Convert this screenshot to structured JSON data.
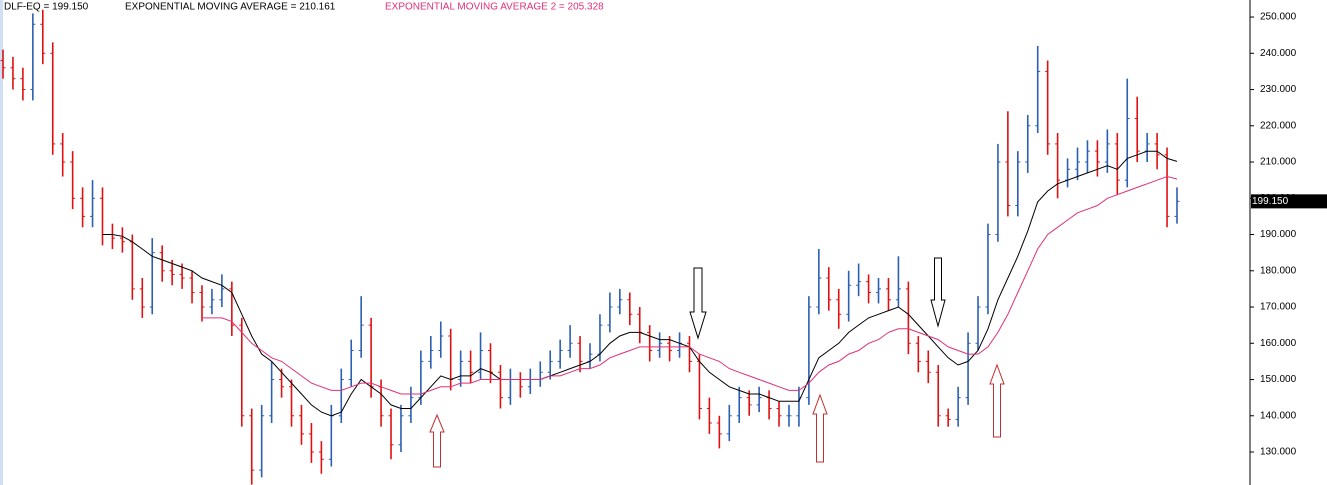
{
  "chart_data": {
    "type": "ohlc",
    "title": "DLF-EQ = 199.150",
    "up_color": "#2b5fb3",
    "down_color": "#e01010",
    "last_price_label": "199.150",
    "ylim": [
      120.9,
      254.7
    ],
    "yticks": [
      {
        "value": 130,
        "label": "130.000"
      },
      {
        "value": 140,
        "label": "140.000"
      },
      {
        "value": 150,
        "label": "150.000"
      },
      {
        "value": 160,
        "label": "160.000"
      },
      {
        "value": 170,
        "label": "170.000"
      },
      {
        "value": 180,
        "label": "180.000"
      },
      {
        "value": 190,
        "label": "190.000"
      },
      {
        "value": 200,
        "label": "200.000"
      },
      {
        "value": 210,
        "label": "210.000"
      },
      {
        "value": 220,
        "label": "220.000"
      },
      {
        "value": 230,
        "label": "230.000"
      },
      {
        "value": 240,
        "label": "240.000"
      },
      {
        "value": 250,
        "label": "250.000"
      }
    ],
    "ohlc": [
      [
        238,
        241,
        233,
        236
      ],
      [
        236,
        239,
        230,
        233
      ],
      [
        233,
        236,
        227,
        230
      ],
      [
        230,
        251,
        227,
        248
      ],
      [
        248,
        252,
        237,
        240
      ],
      [
        240,
        243,
        212,
        215
      ],
      [
        215,
        218,
        206,
        210
      ],
      [
        210,
        213,
        197,
        200
      ],
      [
        200,
        203,
        192,
        195
      ],
      [
        195,
        205,
        192,
        200
      ],
      [
        200,
        203,
        187,
        190
      ],
      [
        190,
        193,
        186,
        189
      ],
      [
        189,
        192,
        185,
        188
      ],
      [
        188,
        190,
        172,
        175
      ],
      [
        175,
        178,
        167,
        170
      ],
      [
        170,
        189,
        168,
        185
      ],
      [
        185,
        187,
        177,
        180
      ],
      [
        180,
        183,
        176,
        179
      ],
      [
        179,
        182,
        175,
        178
      ],
      [
        178,
        180,
        171,
        174
      ],
      [
        174,
        176,
        166,
        170
      ],
      [
        170,
        175,
        168,
        172
      ],
      [
        172,
        179,
        170,
        175
      ],
      [
        175,
        177,
        162,
        165
      ],
      [
        165,
        167,
        137,
        140
      ],
      [
        140,
        142,
        121,
        125
      ],
      [
        125,
        143,
        123,
        140
      ],
      [
        140,
        155,
        138,
        150
      ],
      [
        150,
        153,
        145,
        148
      ],
      [
        148,
        150,
        137,
        140
      ],
      [
        140,
        143,
        132,
        135
      ],
      [
        135,
        138,
        127,
        130
      ],
      [
        130,
        133,
        124,
        128
      ],
      [
        128,
        143,
        126,
        140
      ],
      [
        140,
        153,
        138,
        150
      ],
      [
        150,
        161,
        148,
        158
      ],
      [
        158,
        173,
        156,
        165
      ],
      [
        165,
        167,
        145,
        148
      ],
      [
        148,
        150,
        137,
        140
      ],
      [
        140,
        142,
        128,
        132
      ],
      [
        132,
        143,
        130,
        140
      ],
      [
        140,
        148,
        138,
        145
      ],
      [
        145,
        158,
        143,
        155
      ],
      [
        155,
        162,
        153,
        158
      ],
      [
        158,
        166,
        156,
        162
      ],
      [
        162,
        164,
        147,
        150
      ],
      [
        150,
        158,
        148,
        155
      ],
      [
        155,
        158,
        149,
        152
      ],
      [
        152,
        163,
        150,
        158
      ],
      [
        158,
        160,
        149,
        152
      ],
      [
        152,
        154,
        142,
        145
      ],
      [
        145,
        153,
        143,
        150
      ],
      [
        150,
        152,
        145,
        148
      ],
      [
        148,
        153,
        146,
        150
      ],
      [
        150,
        155,
        148,
        152
      ],
      [
        152,
        158,
        150,
        155
      ],
      [
        155,
        161,
        153,
        158
      ],
      [
        158,
        165,
        156,
        160
      ],
      [
        160,
        162,
        152,
        155
      ],
      [
        155,
        160,
        153,
        157
      ],
      [
        157,
        168,
        155,
        165
      ],
      [
        165,
        174,
        163,
        170
      ],
      [
        170,
        175,
        168,
        172
      ],
      [
        172,
        174,
        165,
        168
      ],
      [
        168,
        170,
        160,
        163
      ],
      [
        163,
        165,
        155,
        158
      ],
      [
        158,
        163,
        156,
        160
      ],
      [
        160,
        162,
        155,
        158
      ],
      [
        158,
        163,
        156,
        160
      ],
      [
        160,
        162,
        152,
        155
      ],
      [
        155,
        157,
        139,
        142
      ],
      [
        142,
        145,
        135,
        138
      ],
      [
        138,
        140,
        131,
        135
      ],
      [
        135,
        143,
        133,
        140
      ],
      [
        140,
        148,
        138,
        145
      ],
      [
        145,
        147,
        140,
        143
      ],
      [
        143,
        148,
        141,
        145
      ],
      [
        145,
        147,
        139,
        142
      ],
      [
        142,
        144,
        137,
        140
      ],
      [
        140,
        143,
        137,
        140
      ],
      [
        140,
        148,
        137,
        145
      ],
      [
        145,
        173,
        143,
        170
      ],
      [
        170,
        186,
        168,
        178
      ],
      [
        178,
        181,
        169,
        172
      ],
      [
        172,
        175,
        164,
        168
      ],
      [
        168,
        180,
        166,
        176
      ],
      [
        176,
        182,
        173,
        177
      ],
      [
        177,
        179,
        171,
        174
      ],
      [
        174,
        178,
        171,
        175
      ],
      [
        175,
        178,
        169,
        172
      ],
      [
        172,
        184,
        170,
        175
      ],
      [
        175,
        177,
        157,
        160
      ],
      [
        160,
        162,
        152,
        155
      ],
      [
        155,
        158,
        149,
        152
      ],
      [
        152,
        154,
        137,
        140
      ],
      [
        140,
        142,
        137,
        139
      ],
      [
        139,
        148,
        137,
        145
      ],
      [
        145,
        163,
        143,
        160
      ],
      [
        160,
        173,
        158,
        170
      ],
      [
        170,
        193,
        168,
        190
      ],
      [
        190,
        215,
        188,
        210
      ],
      [
        210,
        224,
        195,
        198
      ],
      [
        198,
        213,
        195,
        210
      ],
      [
        210,
        223,
        207,
        220
      ],
      [
        220,
        242,
        218,
        235
      ],
      [
        235,
        238,
        212,
        215
      ],
      [
        215,
        218,
        200,
        205
      ],
      [
        205,
        211,
        203,
        208
      ],
      [
        208,
        214,
        205,
        210
      ],
      [
        210,
        216,
        207,
        213
      ],
      [
        213,
        216,
        206,
        210
      ],
      [
        210,
        219,
        207,
        215
      ],
      [
        215,
        218,
        201,
        205
      ],
      [
        205,
        233,
        203,
        222
      ],
      [
        222,
        228,
        210,
        213
      ],
      [
        213,
        218,
        210,
        215
      ],
      [
        215,
        218,
        208,
        212
      ],
      [
        212,
        214,
        192,
        195
      ],
      [
        195,
        203,
        193,
        199.15
      ]
    ],
    "series": [
      {
        "label": "EXPONENTIAL MOVING AVERAGE = 210.161",
        "color": "#000000",
        "values": [
          null,
          null,
          null,
          null,
          null,
          null,
          null,
          null,
          null,
          null,
          190,
          190,
          189.5,
          188,
          186,
          184,
          183,
          182,
          181,
          180,
          178,
          177,
          176,
          174,
          168,
          162,
          157,
          155,
          152,
          149,
          146,
          143,
          141,
          140,
          141,
          146,
          150,
          148,
          146,
          143,
          142,
          142,
          145,
          148,
          151,
          150,
          151,
          151,
          153,
          152,
          150,
          150,
          150,
          150,
          150,
          151,
          152,
          153,
          154,
          155,
          157,
          160,
          162,
          163,
          163,
          162,
          161,
          161,
          160,
          159,
          155,
          152,
          150,
          148,
          147,
          146,
          146,
          145,
          144,
          144,
          144,
          150,
          156,
          158,
          160,
          163,
          165,
          167,
          168,
          169,
          170,
          168,
          165,
          162,
          159,
          156,
          154,
          155,
          158,
          164,
          172,
          178,
          184,
          191,
          199,
          202,
          204,
          205,
          206,
          207,
          208,
          209,
          208,
          211,
          212,
          213,
          213,
          211,
          210.161
        ]
      },
      {
        "label": "EXPONENTIAL MOVING AVERAGE 2 = 205.328",
        "color": "#e0307a",
        "values": [
          null,
          null,
          null,
          null,
          null,
          null,
          null,
          null,
          null,
          null,
          null,
          null,
          null,
          null,
          null,
          null,
          null,
          null,
          null,
          null,
          167,
          167,
          167,
          166,
          163,
          160,
          158,
          156,
          155,
          153,
          151,
          149,
          148,
          147,
          147,
          148,
          149,
          149,
          148,
          147,
          146,
          146,
          146,
          147,
          148,
          148,
          149,
          149,
          150,
          150,
          150,
          150,
          150,
          150,
          150,
          151,
          151,
          152,
          153,
          153,
          154,
          156,
          157,
          158,
          159,
          159,
          159,
          159,
          159,
          159,
          157,
          156,
          155,
          153,
          152,
          151,
          150,
          149,
          148,
          147,
          147,
          149,
          152,
          154,
          155,
          157,
          158,
          160,
          161,
          163,
          164,
          164,
          163,
          162,
          161,
          159,
          158,
          157,
          157,
          159,
          163,
          168,
          174,
          180,
          186,
          190,
          192,
          194,
          196,
          197,
          198,
          200,
          201,
          202,
          203,
          204,
          205,
          206,
          205.328
        ]
      }
    ]
  }
}
